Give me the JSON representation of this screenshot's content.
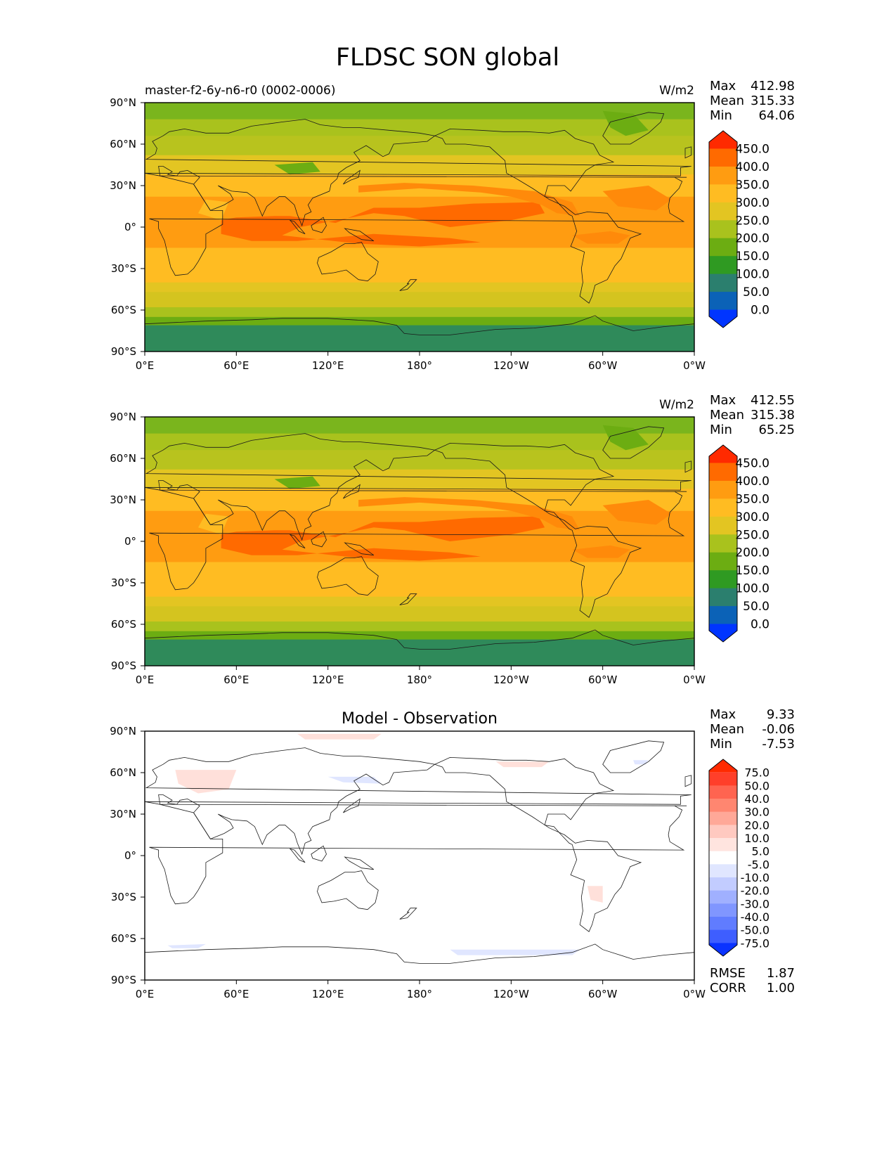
{
  "figure": {
    "title": "FLDSC SON global"
  },
  "chart_data": [
    {
      "type": "heatmap",
      "title": "master-f2-6y-n6-r0 (0002-0006)",
      "units": "W/m2",
      "stats": {
        "max_label": "Max",
        "max": "412.98",
        "mean_label": "Mean",
        "mean": "315.33",
        "min_label": "Min",
        "min": "64.06"
      },
      "x_ticks": [
        "0°E",
        "60°E",
        "120°E",
        "180°",
        "120°W",
        "60°W",
        "0°W"
      ],
      "y_ticks": [
        "90°N",
        "60°N",
        "30°N",
        "0°",
        "30°S",
        "60°S",
        "90°S"
      ],
      "xlim": [
        0,
        360
      ],
      "ylim": [
        -90,
        90
      ],
      "colorbar": {
        "labels": [
          "450.0",
          "400.0",
          "350.0",
          "300.0",
          "250.0",
          "200.0",
          "150.0",
          "100.0",
          "50.0",
          "0.0"
        ],
        "colors": [
          "#ff2a00",
          "#ff6a00",
          "#ff9c11",
          "#ffbc22",
          "#e3c522",
          "#a9c21d",
          "#6cad12",
          "#2f9a22",
          "#2b7f6e",
          "#0b62b7",
          "#0035ff"
        ]
      }
    },
    {
      "type": "heatmap",
      "title": "",
      "units": "W/m2",
      "stats": {
        "max_label": "Max",
        "max": "412.55",
        "mean_label": "Mean",
        "mean": "315.38",
        "min_label": "Min",
        "min": "65.25"
      },
      "x_ticks": [
        "0°E",
        "60°E",
        "120°E",
        "180°",
        "120°W",
        "60°W",
        "0°W"
      ],
      "y_ticks": [
        "90°N",
        "60°N",
        "30°N",
        "0°",
        "30°S",
        "60°S",
        "90°S"
      ],
      "xlim": [
        0,
        360
      ],
      "ylim": [
        -90,
        90
      ],
      "colorbar": {
        "labels": [
          "450.0",
          "400.0",
          "350.0",
          "300.0",
          "250.0",
          "200.0",
          "150.0",
          "100.0",
          "50.0",
          "0.0"
        ],
        "colors": [
          "#ff2a00",
          "#ff6a00",
          "#ff9c11",
          "#ffbc22",
          "#e3c522",
          "#a9c21d",
          "#6cad12",
          "#2f9a22",
          "#2b7f6e",
          "#0b62b7",
          "#0035ff"
        ]
      }
    },
    {
      "type": "heatmap",
      "title": "Model - Observation",
      "units": "",
      "stats": {
        "max_label": "Max",
        "max": "9.33",
        "mean_label": "Mean",
        "mean": "-0.06",
        "min_label": "Min",
        "min": "-7.53"
      },
      "metrics": {
        "rmse_label": "RMSE",
        "rmse": "1.87",
        "corr_label": "CORR",
        "corr": "1.00"
      },
      "x_ticks": [
        "0°E",
        "60°E",
        "120°E",
        "180°",
        "120°W",
        "60°W",
        "0°W"
      ],
      "y_ticks": [
        "90°N",
        "60°N",
        "30°N",
        "0°",
        "30°S",
        "60°S",
        "90°S"
      ],
      "xlim": [
        0,
        360
      ],
      "ylim": [
        -90,
        90
      ],
      "colorbar": {
        "labels": [
          "75.0",
          "50.0",
          "40.0",
          "30.0",
          "20.0",
          "10.0",
          "5.0",
          "-5.0",
          "-10.0",
          "-20.0",
          "-30.0",
          "-40.0",
          "-50.0",
          "-75.0"
        ],
        "colors": [
          "#ff2a00",
          "#ff3f2a",
          "#ff6450",
          "#ff8670",
          "#ffa898",
          "#ffc9c0",
          "#ffe4df",
          "#ffffff",
          "#e0e6ff",
          "#c2ccff",
          "#a0b0ff",
          "#8096ff",
          "#607cff",
          "#3e5eff",
          "#0a33ff"
        ]
      }
    }
  ]
}
